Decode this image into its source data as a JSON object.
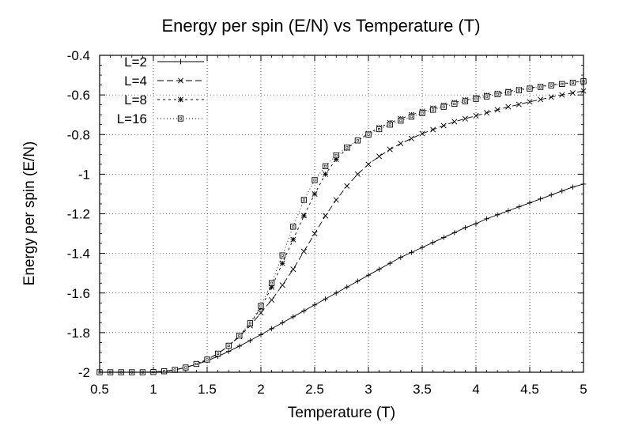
{
  "chart_data": {
    "type": "line",
    "title": "Energy per spin (E/N) vs Temperature (T)",
    "xlabel": "Temperature (T)",
    "ylabel": "Energy per spin (E/N)",
    "xlim": [
      0.5,
      5
    ],
    "ylim": [
      -2,
      -0.4
    ],
    "xticks": [
      "0.5",
      "1",
      "1.5",
      "2",
      "2.5",
      "3",
      "3.5",
      "4",
      "4.5",
      "5"
    ],
    "yticks": [
      "-2",
      "-1.8",
      "-1.6",
      "-1.4",
      "-1.2",
      "-1",
      "-0.8",
      "-0.6",
      "-0.4"
    ],
    "grid": true,
    "legend_position": "top-left",
    "x": [
      0.5,
      0.6,
      0.7,
      0.8,
      0.9,
      1.0,
      1.1,
      1.2,
      1.3,
      1.4,
      1.5,
      1.6,
      1.7,
      1.8,
      1.9,
      2.0,
      2.1,
      2.2,
      2.3,
      2.4,
      2.5,
      2.6,
      2.7,
      2.8,
      2.9,
      3.0,
      3.1,
      3.2,
      3.3,
      3.4,
      3.5,
      3.6,
      3.7,
      3.8,
      3.9,
      4.0,
      4.1,
      4.2,
      4.3,
      4.4,
      4.5,
      4.6,
      4.7,
      4.8,
      4.9,
      5.0
    ],
    "series": [
      {
        "name": "L=2",
        "marker": "plus",
        "dash": "",
        "values": [
          -2.0,
          -2.0,
          -2.0,
          -2.0,
          -2.0,
          -1.999,
          -1.995,
          -1.988,
          -1.976,
          -1.96,
          -1.942,
          -1.92,
          -1.895,
          -1.868,
          -1.84,
          -1.81,
          -1.78,
          -1.75,
          -1.72,
          -1.69,
          -1.66,
          -1.63,
          -1.6,
          -1.57,
          -1.54,
          -1.51,
          -1.48,
          -1.45,
          -1.42,
          -1.395,
          -1.37,
          -1.345,
          -1.32,
          -1.295,
          -1.27,
          -1.25,
          -1.225,
          -1.205,
          -1.185,
          -1.165,
          -1.145,
          -1.125,
          -1.105,
          -1.085,
          -1.065,
          -1.05
        ]
      },
      {
        "name": "L=4",
        "marker": "cross",
        "dash": "8,4",
        "values": [
          -2.0,
          -2.0,
          -2.0,
          -2.0,
          -2.0,
          -1.999,
          -1.995,
          -1.988,
          -1.976,
          -1.958,
          -1.936,
          -1.906,
          -1.868,
          -1.82,
          -1.765,
          -1.7,
          -1.635,
          -1.56,
          -1.48,
          -1.39,
          -1.3,
          -1.21,
          -1.13,
          -1.06,
          -1.0,
          -0.95,
          -0.91,
          -0.875,
          -0.845,
          -0.82,
          -0.795,
          -0.775,
          -0.755,
          -0.735,
          -0.72,
          -0.705,
          -0.69,
          -0.675,
          -0.66,
          -0.648,
          -0.635,
          -0.623,
          -0.611,
          -0.6,
          -0.59,
          -0.58
        ]
      },
      {
        "name": "L=8",
        "marker": "star",
        "dash": "3,4",
        "values": [
          -2.0,
          -2.0,
          -2.0,
          -2.0,
          -2.0,
          -1.999,
          -1.995,
          -1.988,
          -1.976,
          -1.958,
          -1.936,
          -1.906,
          -1.866,
          -1.816,
          -1.755,
          -1.675,
          -1.57,
          -1.45,
          -1.33,
          -1.21,
          -1.1,
          -1.0,
          -0.925,
          -0.87,
          -0.83,
          -0.795,
          -0.765,
          -0.74,
          -0.72,
          -0.7,
          -0.683,
          -0.667,
          -0.652,
          -0.638,
          -0.625,
          -0.613,
          -0.602,
          -0.592,
          -0.582,
          -0.573,
          -0.565,
          -0.557,
          -0.55,
          -0.543,
          -0.537,
          -0.53
        ]
      },
      {
        "name": "L=16",
        "marker": "box",
        "dash": "1,3",
        "values": [
          -2.0,
          -2.0,
          -2.0,
          -2.0,
          -2.0,
          -1.999,
          -1.995,
          -1.988,
          -1.976,
          -1.958,
          -1.936,
          -1.906,
          -1.866,
          -1.815,
          -1.752,
          -1.665,
          -1.55,
          -1.41,
          -1.265,
          -1.13,
          -1.03,
          -0.96,
          -0.905,
          -0.865,
          -0.83,
          -0.8,
          -0.773,
          -0.75,
          -0.73,
          -0.71,
          -0.692,
          -0.675,
          -0.66,
          -0.645,
          -0.632,
          -0.62,
          -0.608,
          -0.597,
          -0.587,
          -0.577,
          -0.568,
          -0.56,
          -0.552,
          -0.545,
          -0.538,
          -0.531
        ]
      }
    ]
  }
}
